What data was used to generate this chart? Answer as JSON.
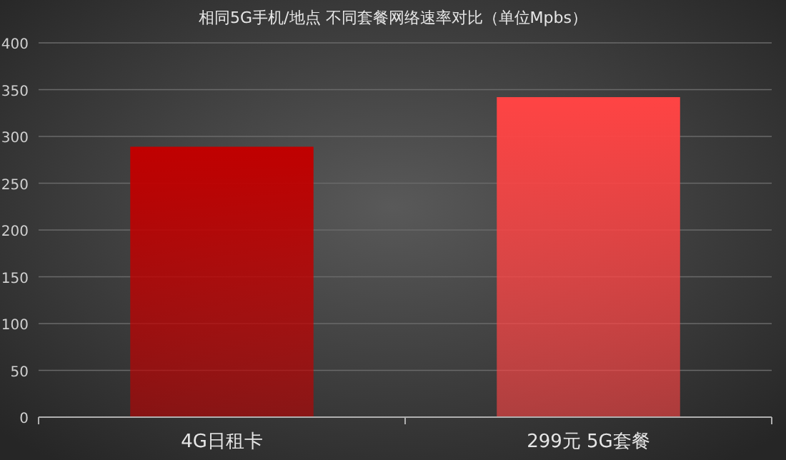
{
  "chart_data": {
    "type": "bar",
    "title": "相同5G手机/地点 不同套餐网络速率对比（单位Mpbs）",
    "categories": [
      "4G日租卡",
      "299元 5G套餐"
    ],
    "values": [
      289,
      342
    ],
    "colors": [
      "#c00000",
      "#ff4444"
    ],
    "ylim": [
      0,
      400
    ],
    "yticks": [
      0,
      50,
      100,
      150,
      200,
      250,
      300,
      350,
      400
    ],
    "grid": "y"
  }
}
